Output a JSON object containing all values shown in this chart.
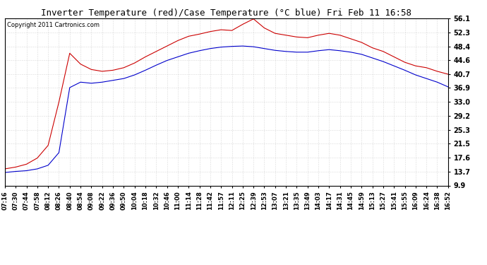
{
  "title": "Inverter Temperature (red)/Case Temperature (°C blue) Fri Feb 11 16:58",
  "copyright": "Copyright 2011 Cartronics.com",
  "background_color": "#ffffff",
  "plot_bg_color": "#ffffff",
  "grid_color": "#bbbbbb",
  "red_color": "#cc0000",
  "blue_color": "#0000cc",
  "yticks": [
    9.9,
    13.7,
    17.6,
    21.5,
    25.3,
    29.2,
    33.0,
    36.9,
    40.7,
    44.6,
    48.4,
    52.3,
    56.1
  ],
  "xtick_labels": [
    "07:16",
    "07:30",
    "07:44",
    "07:58",
    "08:12",
    "08:26",
    "08:40",
    "08:54",
    "09:08",
    "09:22",
    "09:36",
    "09:50",
    "10:04",
    "10:18",
    "10:32",
    "10:46",
    "11:00",
    "11:14",
    "11:28",
    "11:42",
    "11:57",
    "12:11",
    "12:25",
    "12:39",
    "12:53",
    "13:07",
    "13:21",
    "13:35",
    "13:49",
    "14:03",
    "14:17",
    "14:31",
    "14:45",
    "14:59",
    "15:13",
    "15:27",
    "15:41",
    "15:55",
    "16:09",
    "16:24",
    "16:38",
    "16:52"
  ],
  "red_values": [
    14.5,
    15.0,
    15.8,
    17.5,
    21.0,
    33.0,
    46.5,
    43.5,
    42.0,
    41.5,
    41.8,
    42.5,
    43.8,
    45.5,
    47.0,
    48.5,
    50.0,
    51.2,
    51.8,
    52.5,
    53.0,
    52.8,
    54.5,
    56.0,
    53.5,
    52.0,
    51.5,
    51.0,
    50.8,
    51.5,
    52.0,
    51.5,
    50.5,
    49.5,
    48.0,
    47.0,
    45.5,
    44.0,
    43.0,
    42.5,
    41.5,
    40.7
  ],
  "blue_values": [
    13.5,
    13.8,
    14.0,
    14.5,
    15.5,
    19.0,
    37.0,
    38.5,
    38.2,
    38.5,
    39.0,
    39.5,
    40.5,
    41.8,
    43.2,
    44.5,
    45.5,
    46.5,
    47.2,
    47.8,
    48.2,
    48.4,
    48.5,
    48.3,
    47.8,
    47.3,
    47.0,
    46.8,
    46.8,
    47.2,
    47.5,
    47.2,
    46.8,
    46.2,
    45.2,
    44.2,
    43.0,
    41.8,
    40.5,
    39.5,
    38.5,
    37.2
  ],
  "ylim": [
    9.9,
    56.1
  ],
  "title_fontsize": 9,
  "copyright_fontsize": 6,
  "tick_fontsize": 6,
  "ytick_fontsize": 7
}
